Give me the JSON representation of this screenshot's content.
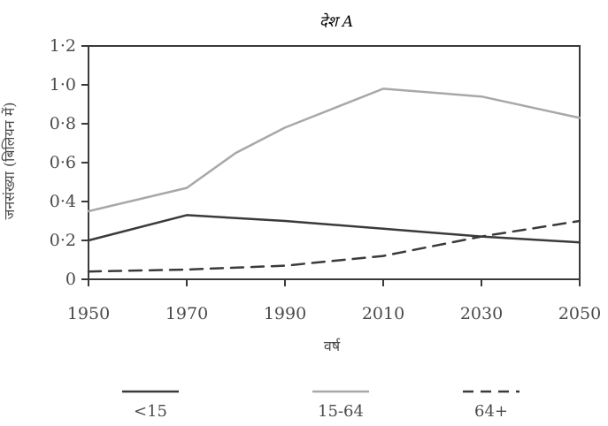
{
  "chart_data": {
    "type": "line",
    "title": "देश A",
    "xlabel": "वर्ष",
    "ylabel": "जनसंख्या (बिलियन में)",
    "x": [
      1950,
      1970,
      1990,
      2010,
      2030,
      2050
    ],
    "xticks": [
      "1950",
      "1970",
      "1990",
      "2010",
      "2030",
      "2050"
    ],
    "yticks": [
      "0",
      "0·2",
      "0·4",
      "0·6",
      "0·8",
      "1·0",
      "1·2"
    ],
    "xlim": [
      1950,
      2050
    ],
    "ylim": [
      0,
      1.2
    ],
    "grid": false,
    "legend_position": "bottom",
    "series": [
      {
        "name": "<15",
        "style": "solid",
        "color": "#3a3a3a",
        "x": [
          1950,
          1970,
          1990,
          2010,
          2030,
          2050
        ],
        "values": [
          0.2,
          0.33,
          0.3,
          0.26,
          0.22,
          0.19
        ]
      },
      {
        "name": "15-64",
        "style": "solid",
        "color": "#a8a8a8",
        "x": [
          1950,
          1970,
          1980,
          1990,
          2010,
          2030,
          2050
        ],
        "values": [
          0.35,
          0.47,
          0.65,
          0.78,
          0.98,
          0.94,
          0.83
        ]
      },
      {
        "name": "64+",
        "style": "dashed",
        "color": "#3a3a3a",
        "x": [
          1950,
          1970,
          1990,
          2010,
          2030,
          2050
        ],
        "values": [
          0.04,
          0.05,
          0.07,
          0.12,
          0.22,
          0.3
        ]
      }
    ]
  }
}
